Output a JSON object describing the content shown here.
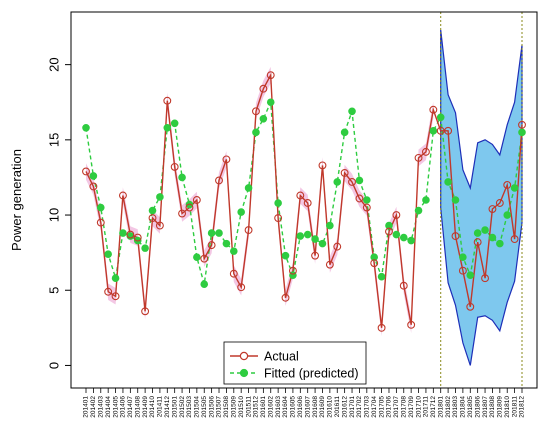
{
  "chart_data": {
    "type": "line",
    "title": "",
    "xlabel": "",
    "ylabel": "Power generation",
    "ylim": [
      -1.5,
      23.5
    ],
    "y_ticks": [
      0,
      5,
      10,
      15,
      20
    ],
    "grid": false,
    "legend_position": "bottom-center",
    "categories": [
      "201401",
      "201402",
      "201403",
      "201404",
      "201405",
      "201406",
      "201407",
      "201408",
      "201409",
      "201410",
      "201411",
      "201412",
      "201501",
      "201502",
      "201503",
      "201504",
      "201505",
      "201506",
      "201507",
      "201508",
      "201509",
      "201510",
      "201511",
      "201512",
      "201601",
      "201602",
      "201603",
      "201604",
      "201605",
      "201606",
      "201607",
      "201608",
      "201609",
      "201610",
      "201611",
      "201612",
      "201701",
      "201702",
      "201703",
      "201704",
      "201705",
      "201706",
      "201707",
      "201708",
      "201709",
      "201710",
      "201711",
      "201712",
      "201801",
      "201802",
      "201803",
      "201804",
      "201805",
      "201806",
      "201807",
      "201808",
      "201809",
      "201810",
      "201811",
      "201812"
    ],
    "forecast_start": "201801",
    "forecast_end": "201812",
    "series": [
      {
        "name": "Actual",
        "color": "#c0392b",
        "values": [
          12.9,
          11.9,
          9.5,
          4.9,
          4.6,
          11.3,
          8.7,
          8.5,
          3.6,
          9.8,
          9.3,
          17.6,
          13.2,
          10.1,
          10.5,
          11.0,
          7.1,
          8.0,
          12.3,
          13.7,
          6.1,
          5.2,
          9.0,
          16.9,
          18.4,
          19.3,
          9.8,
          4.5,
          6.3,
          11.3,
          10.8,
          7.3,
          13.3,
          6.7,
          7.9,
          12.8,
          12.2,
          11.1,
          10.5,
          6.8,
          2.5,
          8.9,
          10.0,
          5.3,
          2.7,
          13.8,
          14.2,
          17.0,
          15.6,
          15.6,
          8.6,
          6.3,
          3.9,
          8.2,
          5.8,
          10.4,
          10.8,
          12.0,
          8.4,
          16.0
        ]
      },
      {
        "name": "Fitted (predicted)",
        "color": "#2ecc40",
        "values": [
          15.8,
          12.6,
          10.5,
          7.4,
          5.8,
          8.8,
          8.6,
          8.3,
          7.8,
          10.3,
          11.2,
          15.8,
          16.1,
          12.5,
          10.7,
          7.2,
          5.4,
          8.8,
          8.8,
          8.1,
          7.6,
          10.2,
          11.8,
          15.5,
          16.4,
          17.5,
          10.8,
          7.3,
          6.0,
          8.6,
          8.7,
          8.4,
          8.1,
          9.3,
          12.2,
          15.5,
          16.9,
          12.3,
          11.0,
          7.2,
          5.9,
          9.3,
          8.7,
          8.5,
          8.3,
          10.3,
          11.0,
          15.6,
          16.5,
          12.2,
          11.0,
          7.2,
          6.0,
          8.8,
          9.0,
          8.5,
          8.1,
          10.0,
          11.8,
          15.5
        ]
      }
    ],
    "prediction_interval": {
      "upper": [
        22.3,
        18.0,
        16.8,
        13.0,
        11.8,
        14.8,
        15.0,
        14.7,
        14.0,
        16.0,
        17.5,
        21.3
      ],
      "lower": [
        10.5,
        5.5,
        4.0,
        1.5,
        0.0,
        3.2,
        3.3,
        3.0,
        2.3,
        4.2,
        5.6,
        9.5
      ]
    }
  },
  "colors": {
    "actual_line": "#c0392b",
    "fitted_line": "#2ecc40",
    "actual_band": "#f3c7e4",
    "interval_fill": "#7ec8ee",
    "interval_border": "#1d2fb8",
    "forecast_marker": "#8a8a1a"
  }
}
